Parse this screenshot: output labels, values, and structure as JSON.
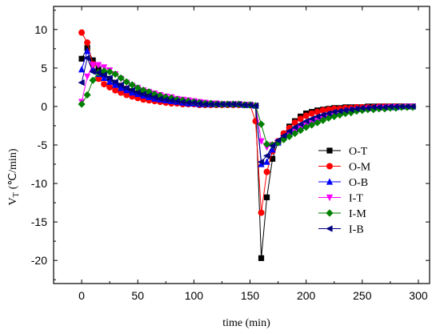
{
  "chart_data": {
    "type": "line",
    "xlabel": "time (min)",
    "ylabel_main": "V",
    "ylabel_sub": "T",
    "ylabel_unit": "(℃/min)",
    "xlim": [
      -25,
      310
    ],
    "ylim": [
      -23,
      13
    ],
    "x_ticks": [
      0,
      50,
      100,
      150,
      200,
      250,
      300
    ],
    "y_ticks": [
      10,
      5,
      0,
      -5,
      -10,
      -15,
      -20
    ],
    "legend_position": "right",
    "series": [
      {
        "name": "O-T",
        "color": "#000000",
        "marker": "square",
        "x": [
          0,
          5,
          10,
          15,
          20,
          25,
          30,
          35,
          40,
          45,
          50,
          55,
          60,
          65,
          70,
          75,
          80,
          85,
          90,
          95,
          100,
          105,
          110,
          115,
          120,
          125,
          130,
          135,
          140,
          145,
          150,
          155,
          160,
          165,
          170,
          175,
          180,
          185,
          190,
          195,
          200,
          205,
          210,
          215,
          220,
          225,
          230,
          235,
          240,
          245,
          250,
          255,
          260,
          265,
          270,
          275,
          280,
          285,
          290,
          295
        ],
        "y": [
          6.2,
          7.6,
          6.0,
          4.8,
          4.1,
          3.6,
          3.1,
          2.7,
          2.3,
          2.0,
          1.7,
          1.5,
          1.3,
          1.1,
          0.9,
          0.8,
          0.7,
          0.6,
          0.5,
          0.4,
          0.4,
          0.3,
          0.3,
          0.3,
          0.3,
          0.3,
          0.3,
          0.3,
          0.3,
          0.2,
          0.2,
          0.1,
          -19.7,
          -11.8,
          -6.8,
          -4.6,
          -3.6,
          -2.6,
          -1.9,
          -1.3,
          -0.9,
          -0.7,
          -0.5,
          -0.4,
          -0.3,
          -0.2,
          -0.2,
          -0.1,
          -0.1,
          -0.1,
          -0.1,
          0.0,
          0.0,
          0.0,
          0.0,
          0.0,
          0.0,
          0.0,
          0.0,
          0.0
        ]
      },
      {
        "name": "O-M",
        "color": "#ff0000",
        "marker": "circle",
        "x": [
          0,
          5,
          10,
          15,
          20,
          25,
          30,
          35,
          40,
          45,
          50,
          55,
          60,
          65,
          70,
          75,
          80,
          85,
          90,
          95,
          100,
          105,
          110,
          115,
          120,
          125,
          130,
          135,
          140,
          145,
          150,
          155,
          160,
          165,
          170,
          175,
          180,
          185,
          190,
          195,
          200,
          205,
          210,
          215,
          220,
          225,
          230,
          235,
          240,
          245,
          250,
          255,
          260,
          265,
          270,
          275,
          280,
          285,
          290,
          295
        ],
        "y": [
          9.6,
          8.3,
          5.5,
          3.6,
          2.9,
          2.5,
          2.1,
          1.8,
          1.5,
          1.3,
          1.1,
          0.9,
          0.8,
          0.7,
          0.6,
          0.5,
          0.4,
          0.4,
          0.3,
          0.3,
          0.3,
          0.2,
          0.2,
          0.2,
          0.2,
          0.2,
          0.2,
          0.2,
          0.2,
          0.2,
          0.2,
          -1.9,
          -13.8,
          -8.5,
          -5.8,
          -4.5,
          -3.5,
          -2.8,
          -2.1,
          -1.6,
          -1.2,
          -0.9,
          -0.7,
          -0.5,
          -0.4,
          -0.3,
          -0.3,
          -0.2,
          -0.2,
          -0.1,
          -0.1,
          -0.1,
          -0.1,
          0.0,
          0.0,
          0.0,
          0.0,
          0.0,
          0.0,
          0.0
        ]
      },
      {
        "name": "O-B",
        "color": "#0000ff",
        "marker": "triangle-up",
        "x": [
          0,
          5,
          10,
          15,
          20,
          25,
          30,
          35,
          40,
          45,
          50,
          55,
          60,
          65,
          70,
          75,
          80,
          85,
          90,
          95,
          100,
          105,
          110,
          115,
          120,
          125,
          130,
          135,
          140,
          145,
          150,
          155,
          160,
          165,
          170,
          175,
          180,
          185,
          190,
          195,
          200,
          205,
          210,
          215,
          220,
          225,
          230,
          235,
          240,
          245,
          250,
          255,
          260,
          265,
          270,
          275,
          280,
          285,
          290,
          295
        ],
        "y": [
          4.8,
          7.2,
          4.9,
          4.2,
          3.7,
          3.2,
          2.8,
          2.4,
          2.1,
          1.8,
          1.6,
          1.4,
          1.2,
          1.0,
          0.9,
          0.8,
          0.7,
          0.6,
          0.5,
          0.4,
          0.4,
          0.3,
          0.3,
          0.3,
          0.3,
          0.3,
          0.3,
          0.3,
          0.3,
          0.2,
          0.2,
          0.1,
          -7.5,
          -7.2,
          -5.6,
          -4.7,
          -4.0,
          -3.4,
          -2.9,
          -2.5,
          -2.1,
          -1.8,
          -1.5,
          -1.2,
          -1.0,
          -0.8,
          -0.7,
          -0.5,
          -0.4,
          -0.3,
          -0.3,
          -0.2,
          -0.2,
          -0.1,
          -0.1,
          -0.1,
          -0.1,
          0.0,
          0.0,
          0.0
        ]
      },
      {
        "name": "I-T",
        "color": "#ff00ff",
        "marker": "triangle-down",
        "x": [
          0,
          5,
          10,
          15,
          20,
          25,
          30,
          35,
          40,
          45,
          50,
          55,
          60,
          65,
          70,
          75,
          80,
          85,
          90,
          95,
          100,
          105,
          110,
          115,
          120,
          125,
          130,
          135,
          140,
          145,
          150,
          155,
          160,
          165,
          170,
          175,
          180,
          185,
          190,
          195,
          200,
          205,
          210,
          215,
          220,
          225,
          230,
          235,
          240,
          245,
          250,
          255,
          260,
          265,
          270,
          275,
          280,
          285,
          290,
          295
        ],
        "y": [
          0.6,
          3.9,
          5.4,
          5.4,
          5.1,
          4.7,
          4.2,
          3.6,
          3.1,
          2.7,
          2.4,
          2.1,
          1.9,
          1.7,
          1.5,
          1.3,
          1.2,
          1.0,
          0.9,
          0.8,
          0.7,
          0.6,
          0.5,
          0.4,
          0.4,
          0.3,
          0.3,
          0.3,
          0.3,
          0.2,
          0.2,
          0.1,
          -4.5,
          -5.3,
          -5.0,
          -4.6,
          -4.1,
          -3.6,
          -3.2,
          -2.8,
          -2.4,
          -2.1,
          -1.8,
          -1.5,
          -1.3,
          -1.1,
          -0.9,
          -0.8,
          -0.6,
          -0.5,
          -0.4,
          -0.3,
          -0.3,
          -0.2,
          -0.2,
          -0.1,
          -0.1,
          -0.1,
          0.0,
          0.0
        ]
      },
      {
        "name": "I-M",
        "color": "#008000",
        "marker": "diamond",
        "x": [
          0,
          5,
          10,
          15,
          20,
          25,
          30,
          35,
          40,
          45,
          50,
          55,
          60,
          65,
          70,
          75,
          80,
          85,
          90,
          95,
          100,
          105,
          110,
          115,
          120,
          125,
          130,
          135,
          140,
          145,
          150,
          155,
          160,
          165,
          170,
          175,
          180,
          185,
          190,
          195,
          200,
          205,
          210,
          215,
          220,
          225,
          230,
          235,
          240,
          245,
          250,
          255,
          260,
          265,
          270,
          275,
          280,
          285,
          290,
          295
        ],
        "y": [
          0.3,
          1.5,
          3.4,
          4.4,
          4.6,
          4.5,
          4.2,
          3.7,
          3.2,
          2.8,
          2.4,
          2.1,
          1.9,
          1.6,
          1.4,
          1.2,
          1.1,
          0.9,
          0.8,
          0.7,
          0.6,
          0.5,
          0.4,
          0.4,
          0.3,
          0.3,
          0.3,
          0.3,
          0.3,
          0.2,
          0.2,
          0.1,
          -2.3,
          -4.9,
          -5.0,
          -4.7,
          -4.3,
          -3.9,
          -3.5,
          -3.1,
          -2.7,
          -2.4,
          -2.1,
          -1.8,
          -1.5,
          -1.3,
          -1.1,
          -0.9,
          -0.8,
          -0.6,
          -0.5,
          -0.4,
          -0.4,
          -0.3,
          -0.3,
          -0.2,
          -0.2,
          -0.1,
          -0.1,
          -0.1
        ]
      },
      {
        "name": "I-B",
        "color": "#000080",
        "marker": "triangle-left",
        "x": [
          0,
          5,
          10,
          15,
          20,
          25,
          30,
          35,
          40,
          45,
          50,
          55,
          60,
          65,
          70,
          75,
          80,
          85,
          90,
          95,
          100,
          105,
          110,
          115,
          120,
          125,
          130,
          135,
          140,
          145,
          150,
          155,
          160,
          165,
          170,
          175,
          180,
          185,
          190,
          195,
          200,
          205,
          210,
          215,
          220,
          225,
          230,
          235,
          240,
          245,
          250,
          255,
          260,
          265,
          270,
          275,
          280,
          285,
          290,
          295
        ],
        "y": [
          3.1,
          6.3,
          4.5,
          4.4,
          4.1,
          3.7,
          3.2,
          2.8,
          2.4,
          2.1,
          1.8,
          1.6,
          1.4,
          1.2,
          1.0,
          0.9,
          0.8,
          0.7,
          0.6,
          0.5,
          0.5,
          0.4,
          0.3,
          0.3,
          0.3,
          0.3,
          0.3,
          0.3,
          0.3,
          0.2,
          0.2,
          0.1,
          -7.2,
          -6.4,
          -5.1,
          -4.4,
          -3.8,
          -3.2,
          -2.7,
          -2.3,
          -1.9,
          -1.6,
          -1.3,
          -1.1,
          -0.9,
          -0.7,
          -0.6,
          -0.5,
          -0.4,
          -0.3,
          -0.2,
          -0.2,
          -0.1,
          -0.1,
          -0.1,
          0.0,
          0.0,
          0.0,
          0.0,
          0.0
        ]
      }
    ]
  }
}
